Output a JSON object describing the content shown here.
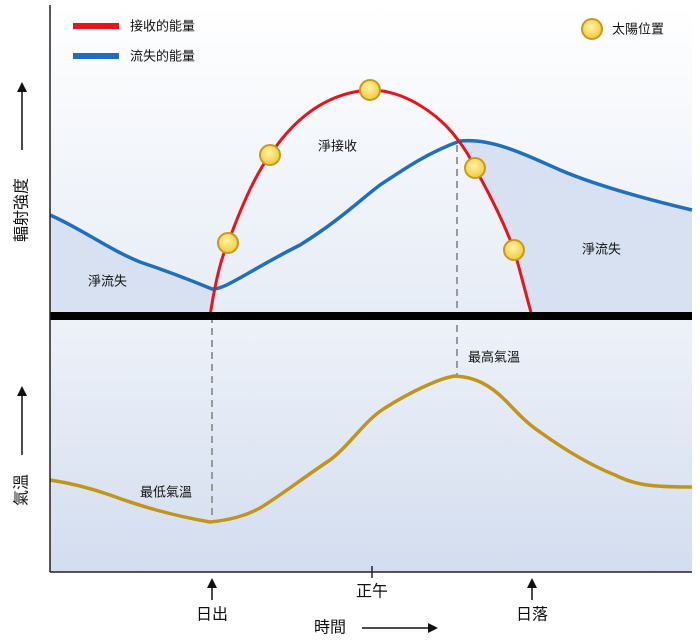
{
  "legend": {
    "received": "接收的能量",
    "lost": "流失的能量",
    "sun": "太陽位置"
  },
  "labels": {
    "net_received": "淨接收",
    "net_lost_left": "淨流失",
    "net_lost_right": "淨流失",
    "max_temp": "最高氣溫",
    "min_temp": "最低氣溫"
  },
  "axes": {
    "y_upper": "輻射強度",
    "y_lower": "氣溫",
    "x": "時間",
    "sunrise": "日出",
    "noon": "正午",
    "sunset": "日落"
  }
}
